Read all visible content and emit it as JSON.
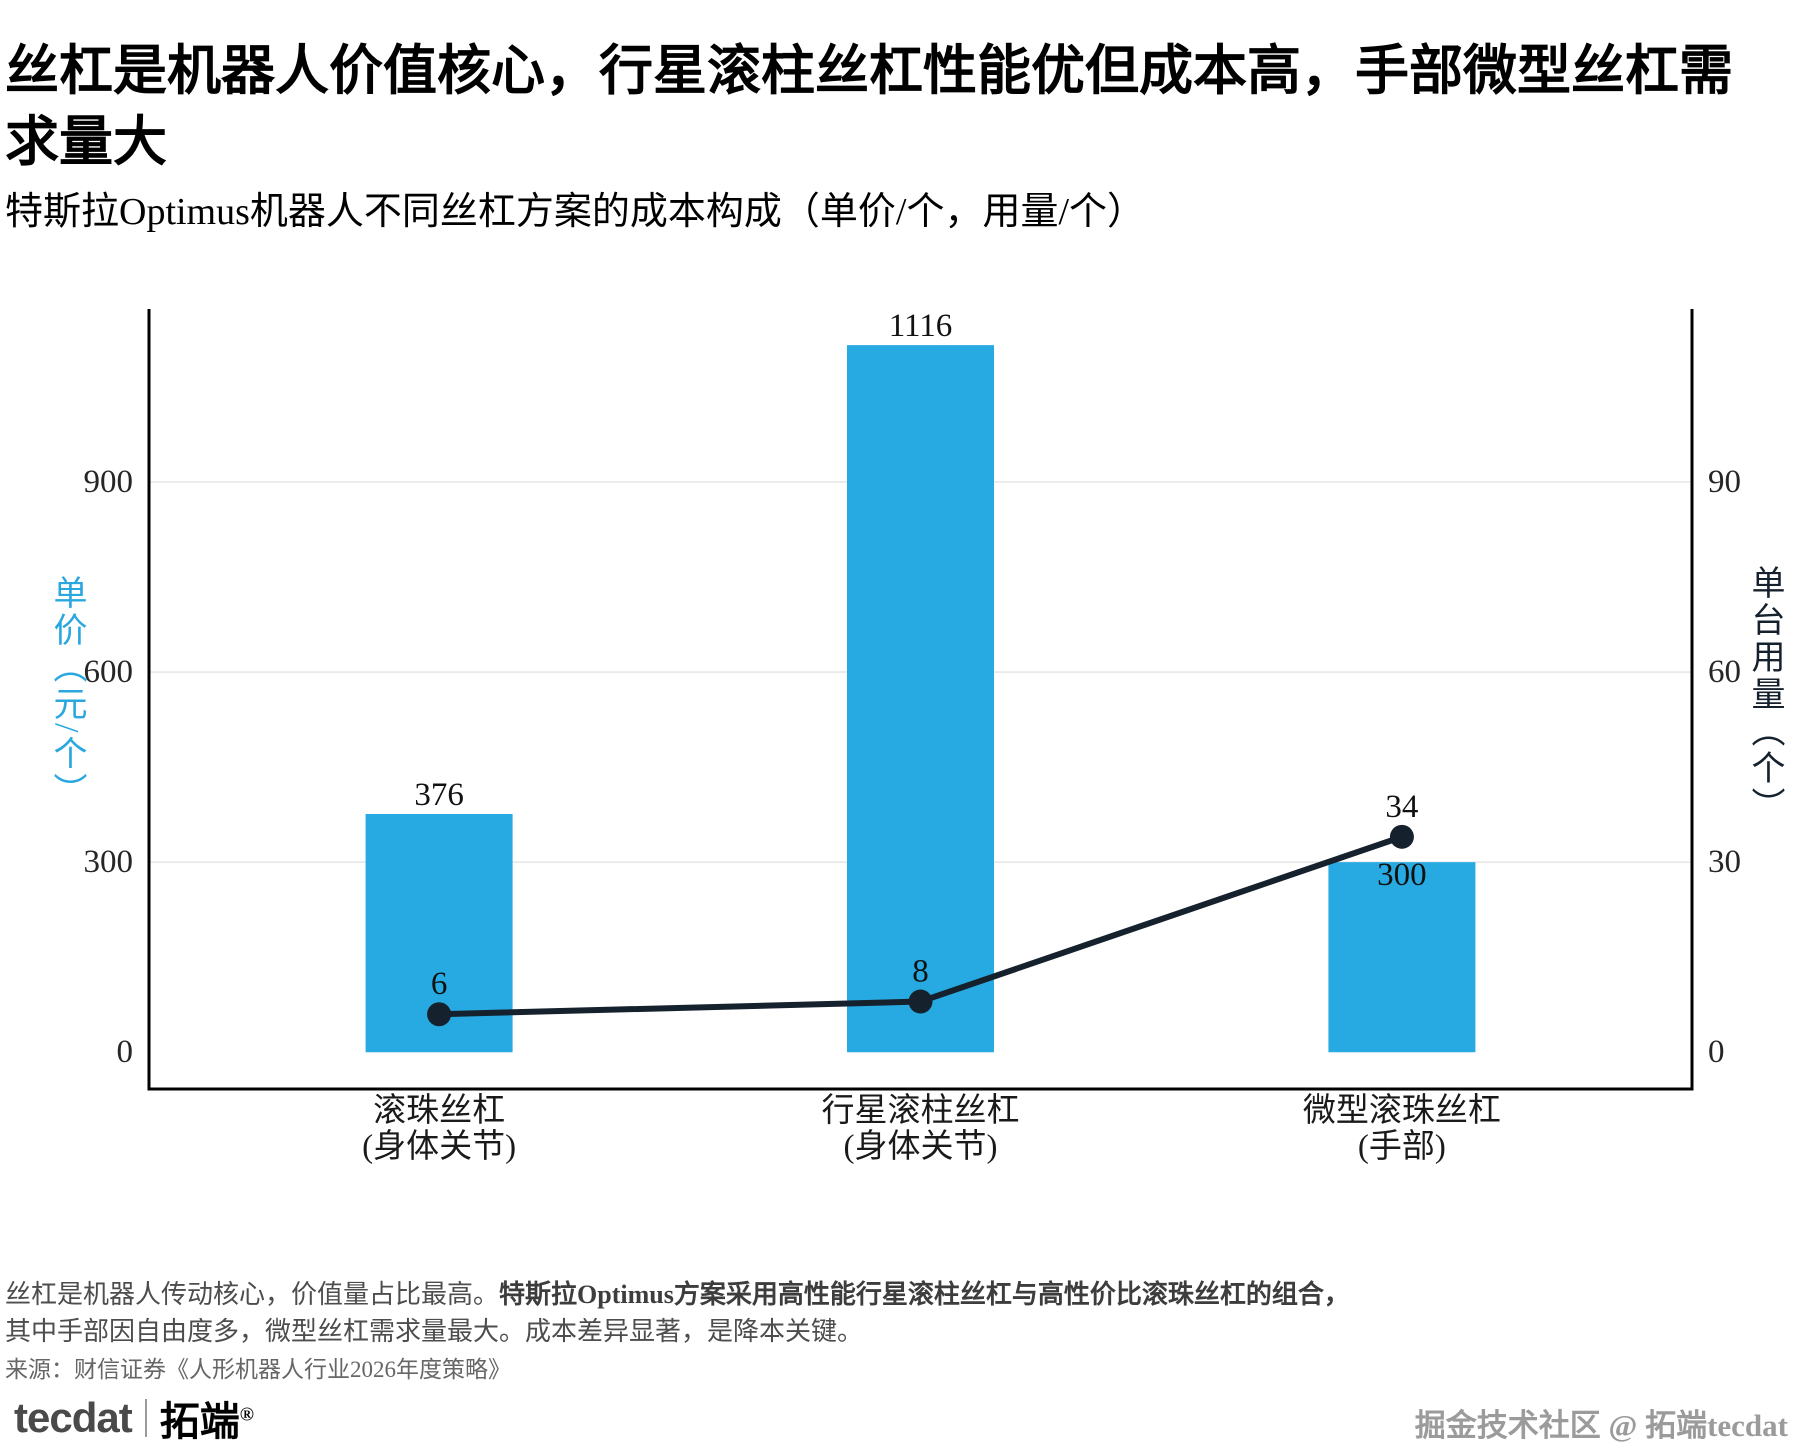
{
  "title": "丝杠是机器人价值核心，行星滚柱丝杠性能优但成本高，手部微型丝杠需求量大",
  "subtitle": "特斯拉Optimus机器人不同丝杠方案的成本构成（单价/个，用量/个）",
  "chart_data": {
    "type": "bar",
    "subtype": "bar-line-combo",
    "title": "特斯拉Optimus机器人不同丝杠方案的成本构成（单价/个，用量/个）",
    "categories": [
      [
        "滚珠丝杠",
        "(身体关节)"
      ],
      [
        "行星滚柱丝杠",
        "(身体关节)"
      ],
      [
        "微型滚珠丝杠",
        "(手部)"
      ]
    ],
    "series": [
      {
        "name": "单价（元/个）",
        "type": "bar",
        "axis": "left",
        "values": [
          376,
          1116,
          300
        ],
        "color": "#27aae1"
      },
      {
        "name": "单台用量（个）",
        "type": "line",
        "axis": "right",
        "values": [
          6,
          8,
          34
        ],
        "color": "#16212e"
      }
    ],
    "left_axis": {
      "label": "单价（元/个）",
      "ticks": [
        0,
        300,
        600,
        900
      ],
      "range": [
        -58,
        1173
      ],
      "color": "#2aa7de"
    },
    "right_axis": {
      "label": "单台用量（个）",
      "ticks": [
        0,
        30,
        60,
        90
      ],
      "range": [
        -5.8,
        117.3
      ],
      "color": "#16212e"
    },
    "grid": true,
    "grid_color": "#e7e7e7",
    "spine_color": "#000000",
    "legend_position": "none"
  },
  "footer": {
    "line1_normal": "丝杠是机器人传动核心，价值量占比最高。",
    "line1_bold": "特斯拉Optimus方案采用高性能行星滚柱丝杠与高性价比滚珠丝杠的组合，",
    "line2": "其中手部因自由度多，微型丝杠需求量最大。成本差异显著，是降本关键。",
    "source": "来源：财信证券《人形机器人行业2026年度策略》"
  },
  "branding": {
    "logo_en": "tecdat",
    "logo_cn": "拓端",
    "logo_reg": "®",
    "watermark": "掘金技术社区 @ 拓端tecdat"
  }
}
